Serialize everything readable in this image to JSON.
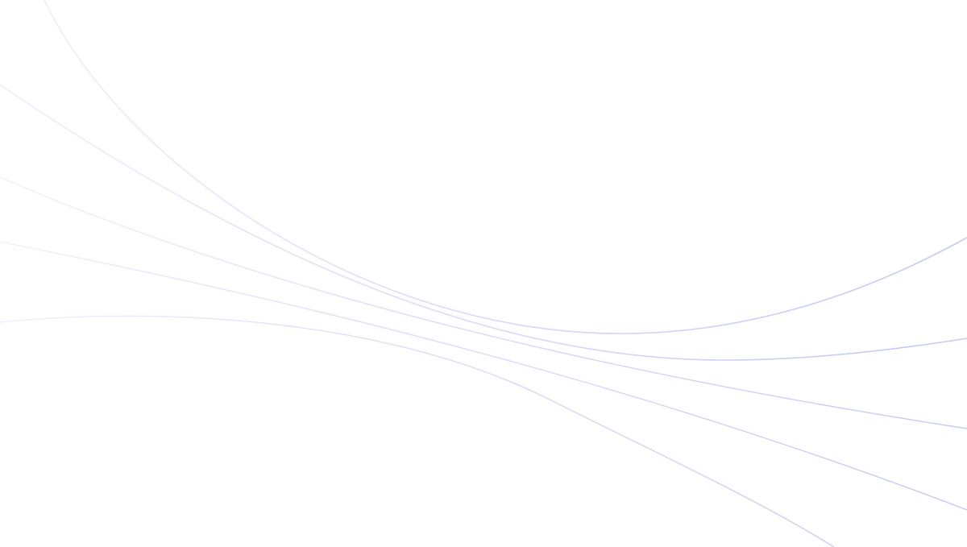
{
  "background": {
    "color": "#ffffff",
    "line_color": "#c4c8f4",
    "line_fade_color": "#eef0fd",
    "curve_count": 5
  }
}
